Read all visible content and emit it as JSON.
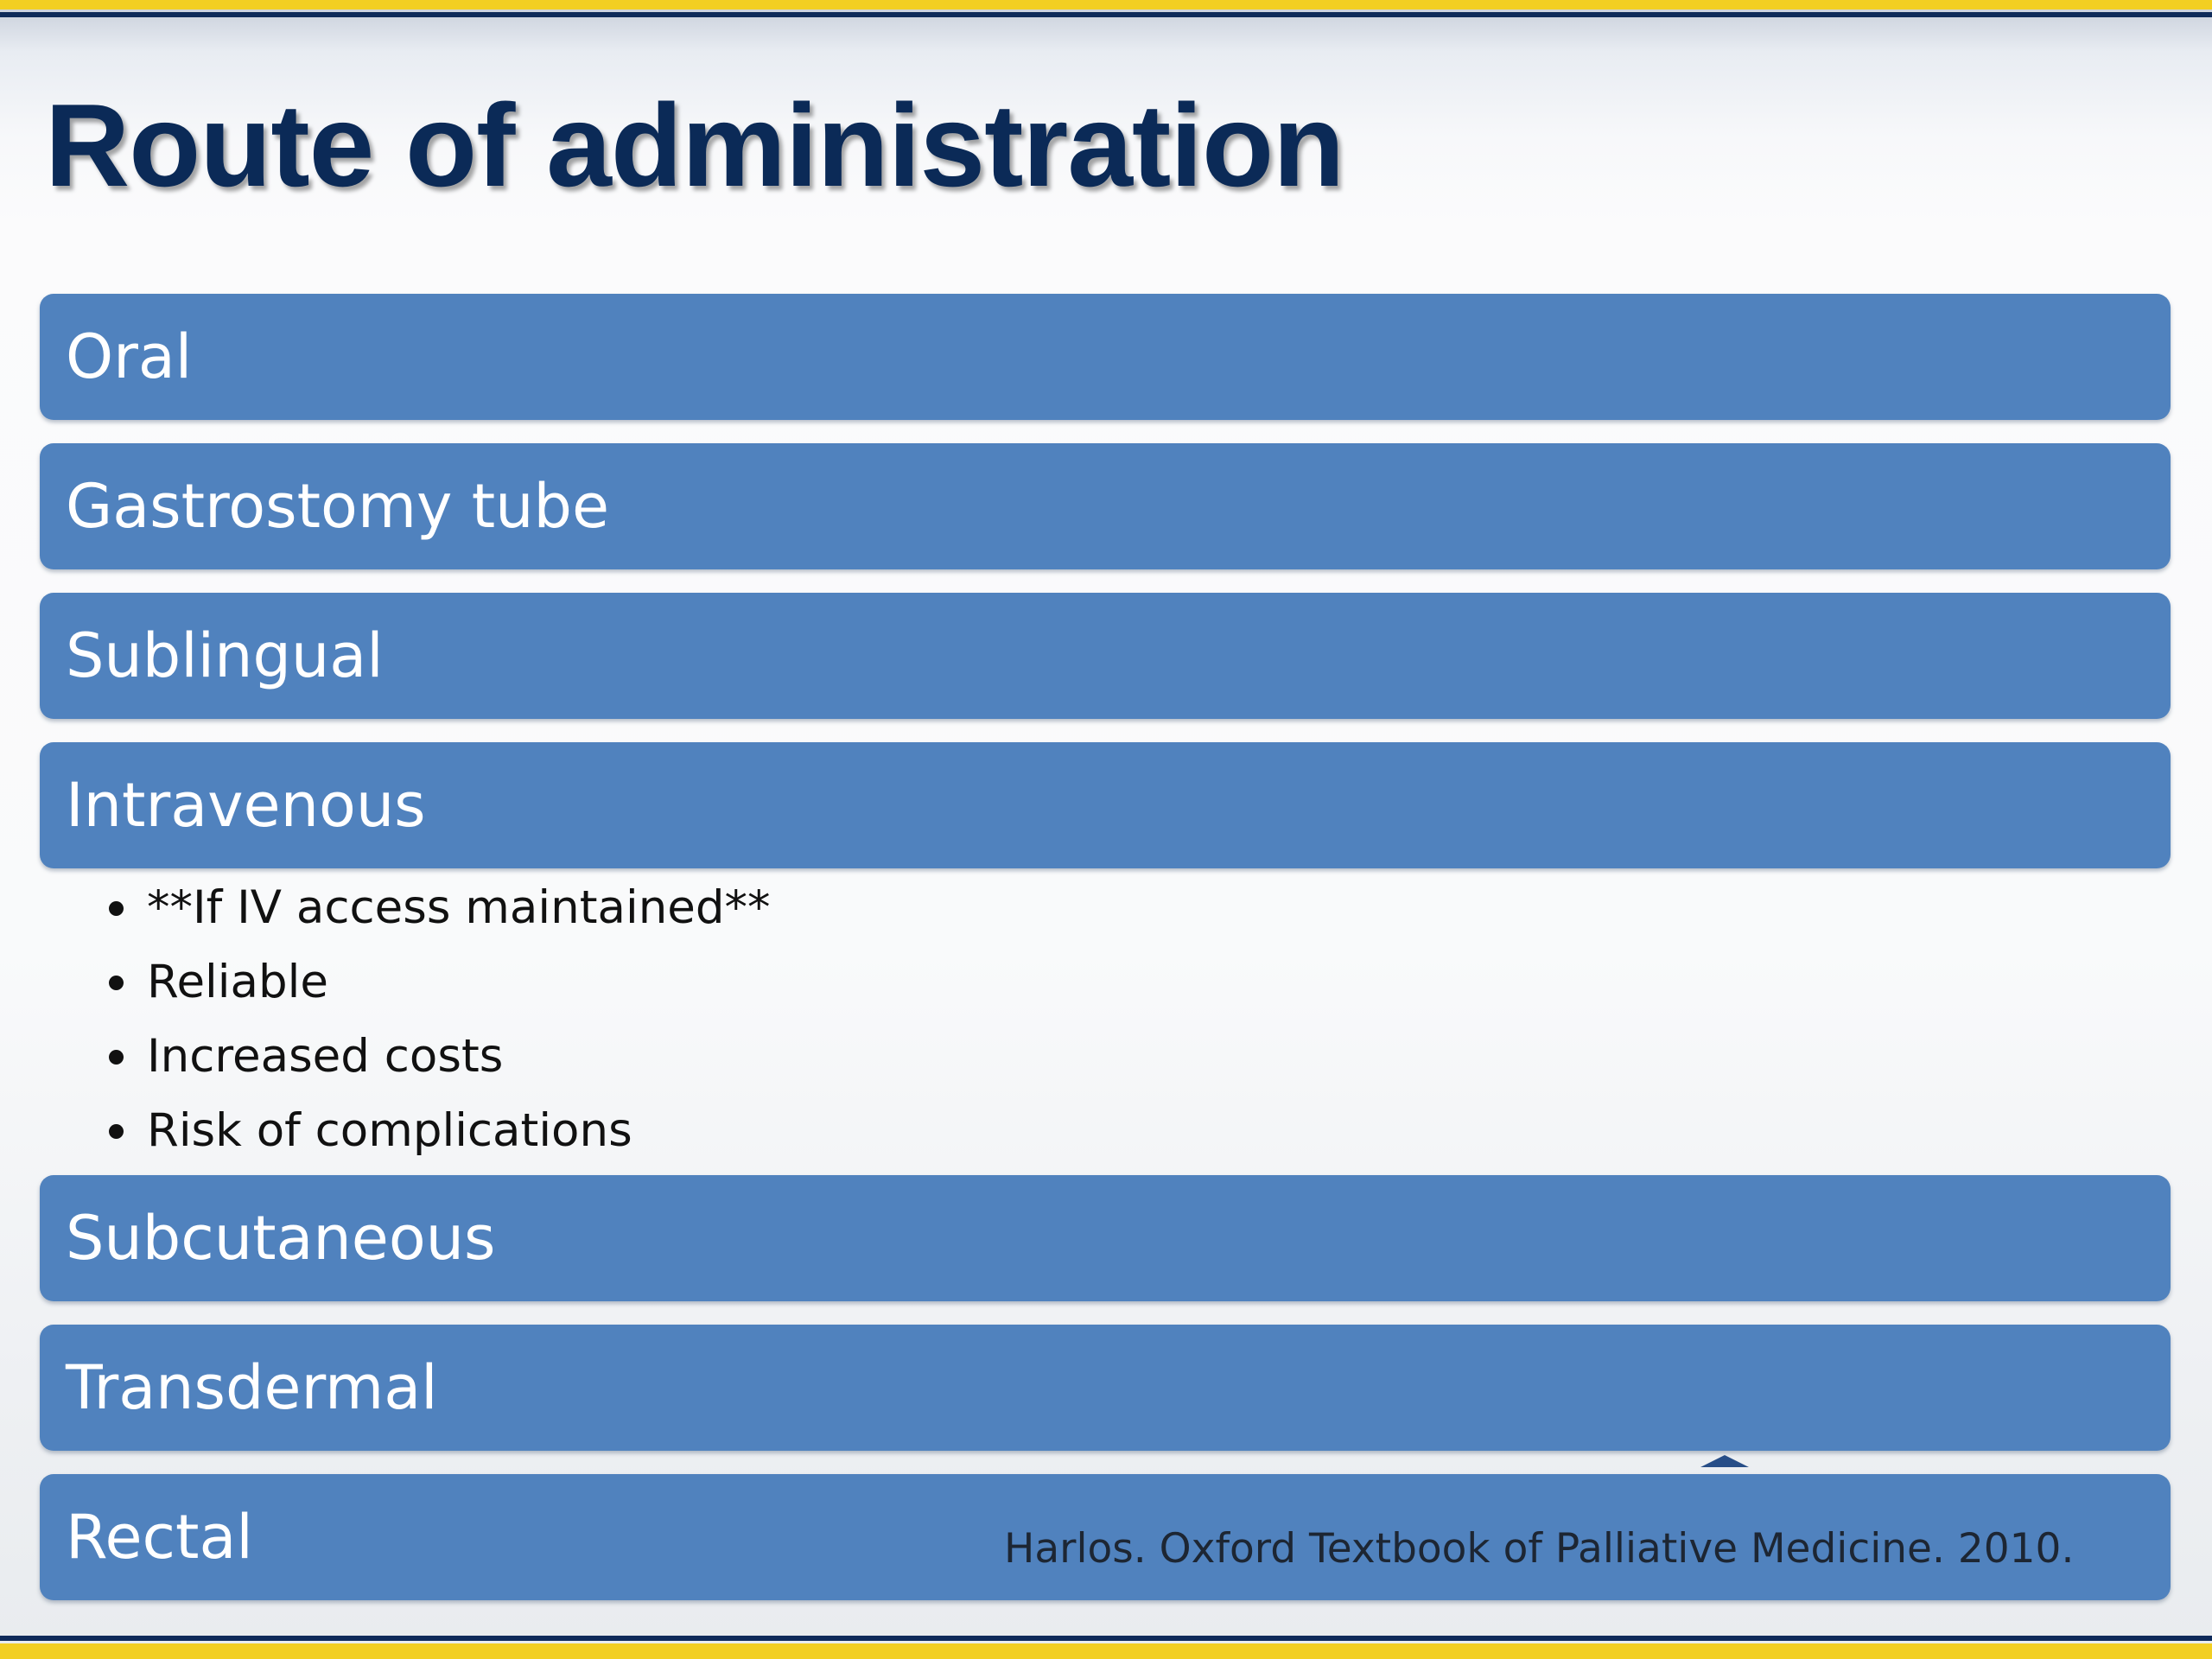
{
  "slide": {
    "title": "Route of administration",
    "routes": [
      {
        "label": "Oral"
      },
      {
        "label": "Gastrostomy tube"
      },
      {
        "label": "Sublingual"
      },
      {
        "label": "Intravenous",
        "details": [
          "**If IV access maintained**",
          "Reliable",
          "Increased costs",
          "Risk of complications"
        ]
      },
      {
        "label": "Subcutaneous"
      },
      {
        "label": "Transdermal"
      },
      {
        "label": "Rectal"
      }
    ],
    "citation": "Harlos.  Oxford Textbook of Palliative Medicine.  2010."
  },
  "colors": {
    "route_bar": "#5082be",
    "title_text": "#0b2a57",
    "accent_yellow": "#f2cf22",
    "accent_navy": "#0f2b5a"
  }
}
